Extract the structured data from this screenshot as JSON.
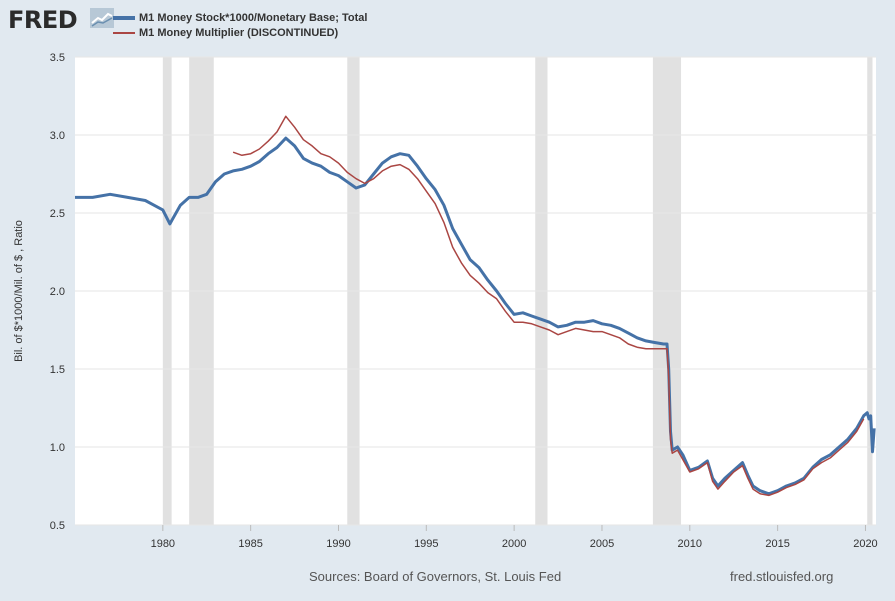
{
  "header": {
    "logo_text": "FRED",
    "logo_icon": "trend-chart-icon"
  },
  "colors": {
    "background": "#e1e9f0",
    "plot_background": "#ffffff",
    "recession": "#e1e1e1",
    "gridline": "#e6e6e6",
    "series_m1": "#4572a7",
    "series_mult": "#aa4643"
  },
  "chart_data": {
    "type": "line",
    "title": "",
    "xlabel": "",
    "ylabel": "Bil. of $*1000/Mil. of $ , Ratio",
    "xlim": [
      1975.0,
      2020.6
    ],
    "ylim": [
      0.5,
      3.5
    ],
    "yticks": [
      "0.5",
      "1.0",
      "1.5",
      "2.0",
      "2.5",
      "3.0",
      "3.5"
    ],
    "xticks": [
      "1980",
      "1985",
      "1990",
      "1995",
      "2000",
      "2005",
      "2010",
      "2015",
      "2020"
    ],
    "grid": true,
    "legend_position": "top-left",
    "recessions": [
      [
        1980.0,
        1980.5
      ],
      [
        1981.5,
        1982.9
      ],
      [
        1990.5,
        1991.2
      ],
      [
        2001.2,
        2001.9
      ],
      [
        2007.9,
        2009.5
      ],
      [
        2020.1,
        2020.4
      ]
    ],
    "series": [
      {
        "name": "M1 Money Stock*1000/Monetary Base; Total",
        "color": "#4572a7",
        "width": 3,
        "x": [
          1975.0,
          1976.0,
          1977.0,
          1978.0,
          1979.0,
          1979.5,
          1980.0,
          1980.4,
          1980.5,
          1981.0,
          1981.5,
          1982.0,
          1982.5,
          1983.0,
          1983.5,
          1984.0,
          1984.5,
          1985.0,
          1985.5,
          1986.0,
          1986.5,
          1987.0,
          1987.5,
          1988.0,
          1988.5,
          1989.0,
          1989.5,
          1990.0,
          1990.5,
          1991.0,
          1991.5,
          1992.0,
          1992.5,
          1993.0,
          1993.5,
          1994.0,
          1994.5,
          1995.0,
          1995.5,
          1996.0,
          1996.5,
          1997.0,
          1997.5,
          1998.0,
          1998.5,
          1999.0,
          1999.5,
          2000.0,
          2000.5,
          2001.0,
          2001.5,
          2002.0,
          2002.5,
          2003.0,
          2003.5,
          2004.0,
          2004.5,
          2005.0,
          2005.5,
          2006.0,
          2006.5,
          2007.0,
          2007.5,
          2008.0,
          2008.5,
          2008.7,
          2008.8,
          2008.9,
          2009.0,
          2009.3,
          2009.6,
          2010.0,
          2010.5,
          2011.0,
          2011.3,
          2011.6,
          2012.0,
          2012.5,
          2013.0,
          2013.3,
          2013.6,
          2014.0,
          2014.5,
          2015.0,
          2015.5,
          2016.0,
          2016.5,
          2017.0,
          2017.5,
          2018.0,
          2018.5,
          2019.0,
          2019.5,
          2019.9,
          2020.1,
          2020.2,
          2020.3,
          2020.4,
          2020.5
        ],
        "y": [
          2.6,
          2.6,
          2.62,
          2.6,
          2.58,
          2.55,
          2.52,
          2.43,
          2.45,
          2.55,
          2.6,
          2.6,
          2.62,
          2.7,
          2.75,
          2.77,
          2.78,
          2.8,
          2.83,
          2.88,
          2.92,
          2.98,
          2.93,
          2.85,
          2.82,
          2.8,
          2.76,
          2.74,
          2.7,
          2.66,
          2.68,
          2.75,
          2.82,
          2.86,
          2.88,
          2.87,
          2.8,
          2.72,
          2.65,
          2.55,
          2.4,
          2.3,
          2.2,
          2.15,
          2.07,
          2.0,
          1.92,
          1.85,
          1.86,
          1.84,
          1.82,
          1.8,
          1.77,
          1.78,
          1.8,
          1.8,
          1.81,
          1.79,
          1.78,
          1.76,
          1.73,
          1.7,
          1.68,
          1.67,
          1.66,
          1.66,
          1.5,
          1.1,
          0.98,
          1.0,
          0.95,
          0.85,
          0.87,
          0.91,
          0.8,
          0.75,
          0.8,
          0.85,
          0.9,
          0.82,
          0.75,
          0.72,
          0.7,
          0.72,
          0.75,
          0.77,
          0.8,
          0.87,
          0.92,
          0.95,
          1.0,
          1.05,
          1.12,
          1.2,
          1.22,
          1.18,
          1.2,
          0.97,
          1.12
        ]
      },
      {
        "name": "M1 Money Multiplier (DISCONTINUED)",
        "color": "#aa4643",
        "width": 1.5,
        "x": [
          1984.0,
          1984.5,
          1985.0,
          1985.5,
          1986.0,
          1986.5,
          1987.0,
          1987.5,
          1988.0,
          1988.5,
          1989.0,
          1989.5,
          1990.0,
          1990.5,
          1991.0,
          1991.5,
          1992.0,
          1992.5,
          1993.0,
          1993.5,
          1994.0,
          1994.5,
          1995.0,
          1995.5,
          1996.0,
          1996.5,
          1997.0,
          1997.5,
          1998.0,
          1998.5,
          1999.0,
          1999.5,
          2000.0,
          2000.5,
          2001.0,
          2001.5,
          2002.0,
          2002.5,
          2003.0,
          2003.5,
          2004.0,
          2004.5,
          2005.0,
          2005.5,
          2006.0,
          2006.5,
          2007.0,
          2007.5,
          2008.0,
          2008.5,
          2008.7,
          2008.8,
          2008.9,
          2009.0,
          2009.3,
          2009.6,
          2010.0,
          2010.5,
          2011.0,
          2011.3,
          2011.6,
          2012.0,
          2012.5,
          2013.0,
          2013.3,
          2013.6,
          2014.0,
          2014.5,
          2015.0,
          2015.5,
          2016.0,
          2016.5,
          2017.0,
          2017.5,
          2018.0,
          2018.5,
          2019.0,
          2019.5,
          2019.9
        ],
        "y": [
          2.89,
          2.87,
          2.88,
          2.91,
          2.96,
          3.02,
          3.12,
          3.05,
          2.97,
          2.93,
          2.88,
          2.86,
          2.82,
          2.76,
          2.72,
          2.69,
          2.72,
          2.77,
          2.8,
          2.81,
          2.78,
          2.72,
          2.64,
          2.56,
          2.44,
          2.28,
          2.18,
          2.1,
          2.05,
          1.99,
          1.95,
          1.87,
          1.8,
          1.8,
          1.79,
          1.77,
          1.75,
          1.72,
          1.74,
          1.76,
          1.75,
          1.74,
          1.74,
          1.72,
          1.7,
          1.66,
          1.64,
          1.63,
          1.63,
          1.63,
          1.63,
          1.45,
          1.05,
          0.96,
          0.98,
          0.92,
          0.84,
          0.86,
          0.9,
          0.78,
          0.73,
          0.78,
          0.84,
          0.88,
          0.8,
          0.73,
          0.7,
          0.69,
          0.71,
          0.74,
          0.76,
          0.79,
          0.86,
          0.9,
          0.93,
          0.98,
          1.03,
          1.1,
          1.18
        ]
      }
    ]
  },
  "footer": {
    "sources": "Sources: Board of Governors, St. Louis Fed",
    "url": "fred.stlouisfed.org"
  }
}
